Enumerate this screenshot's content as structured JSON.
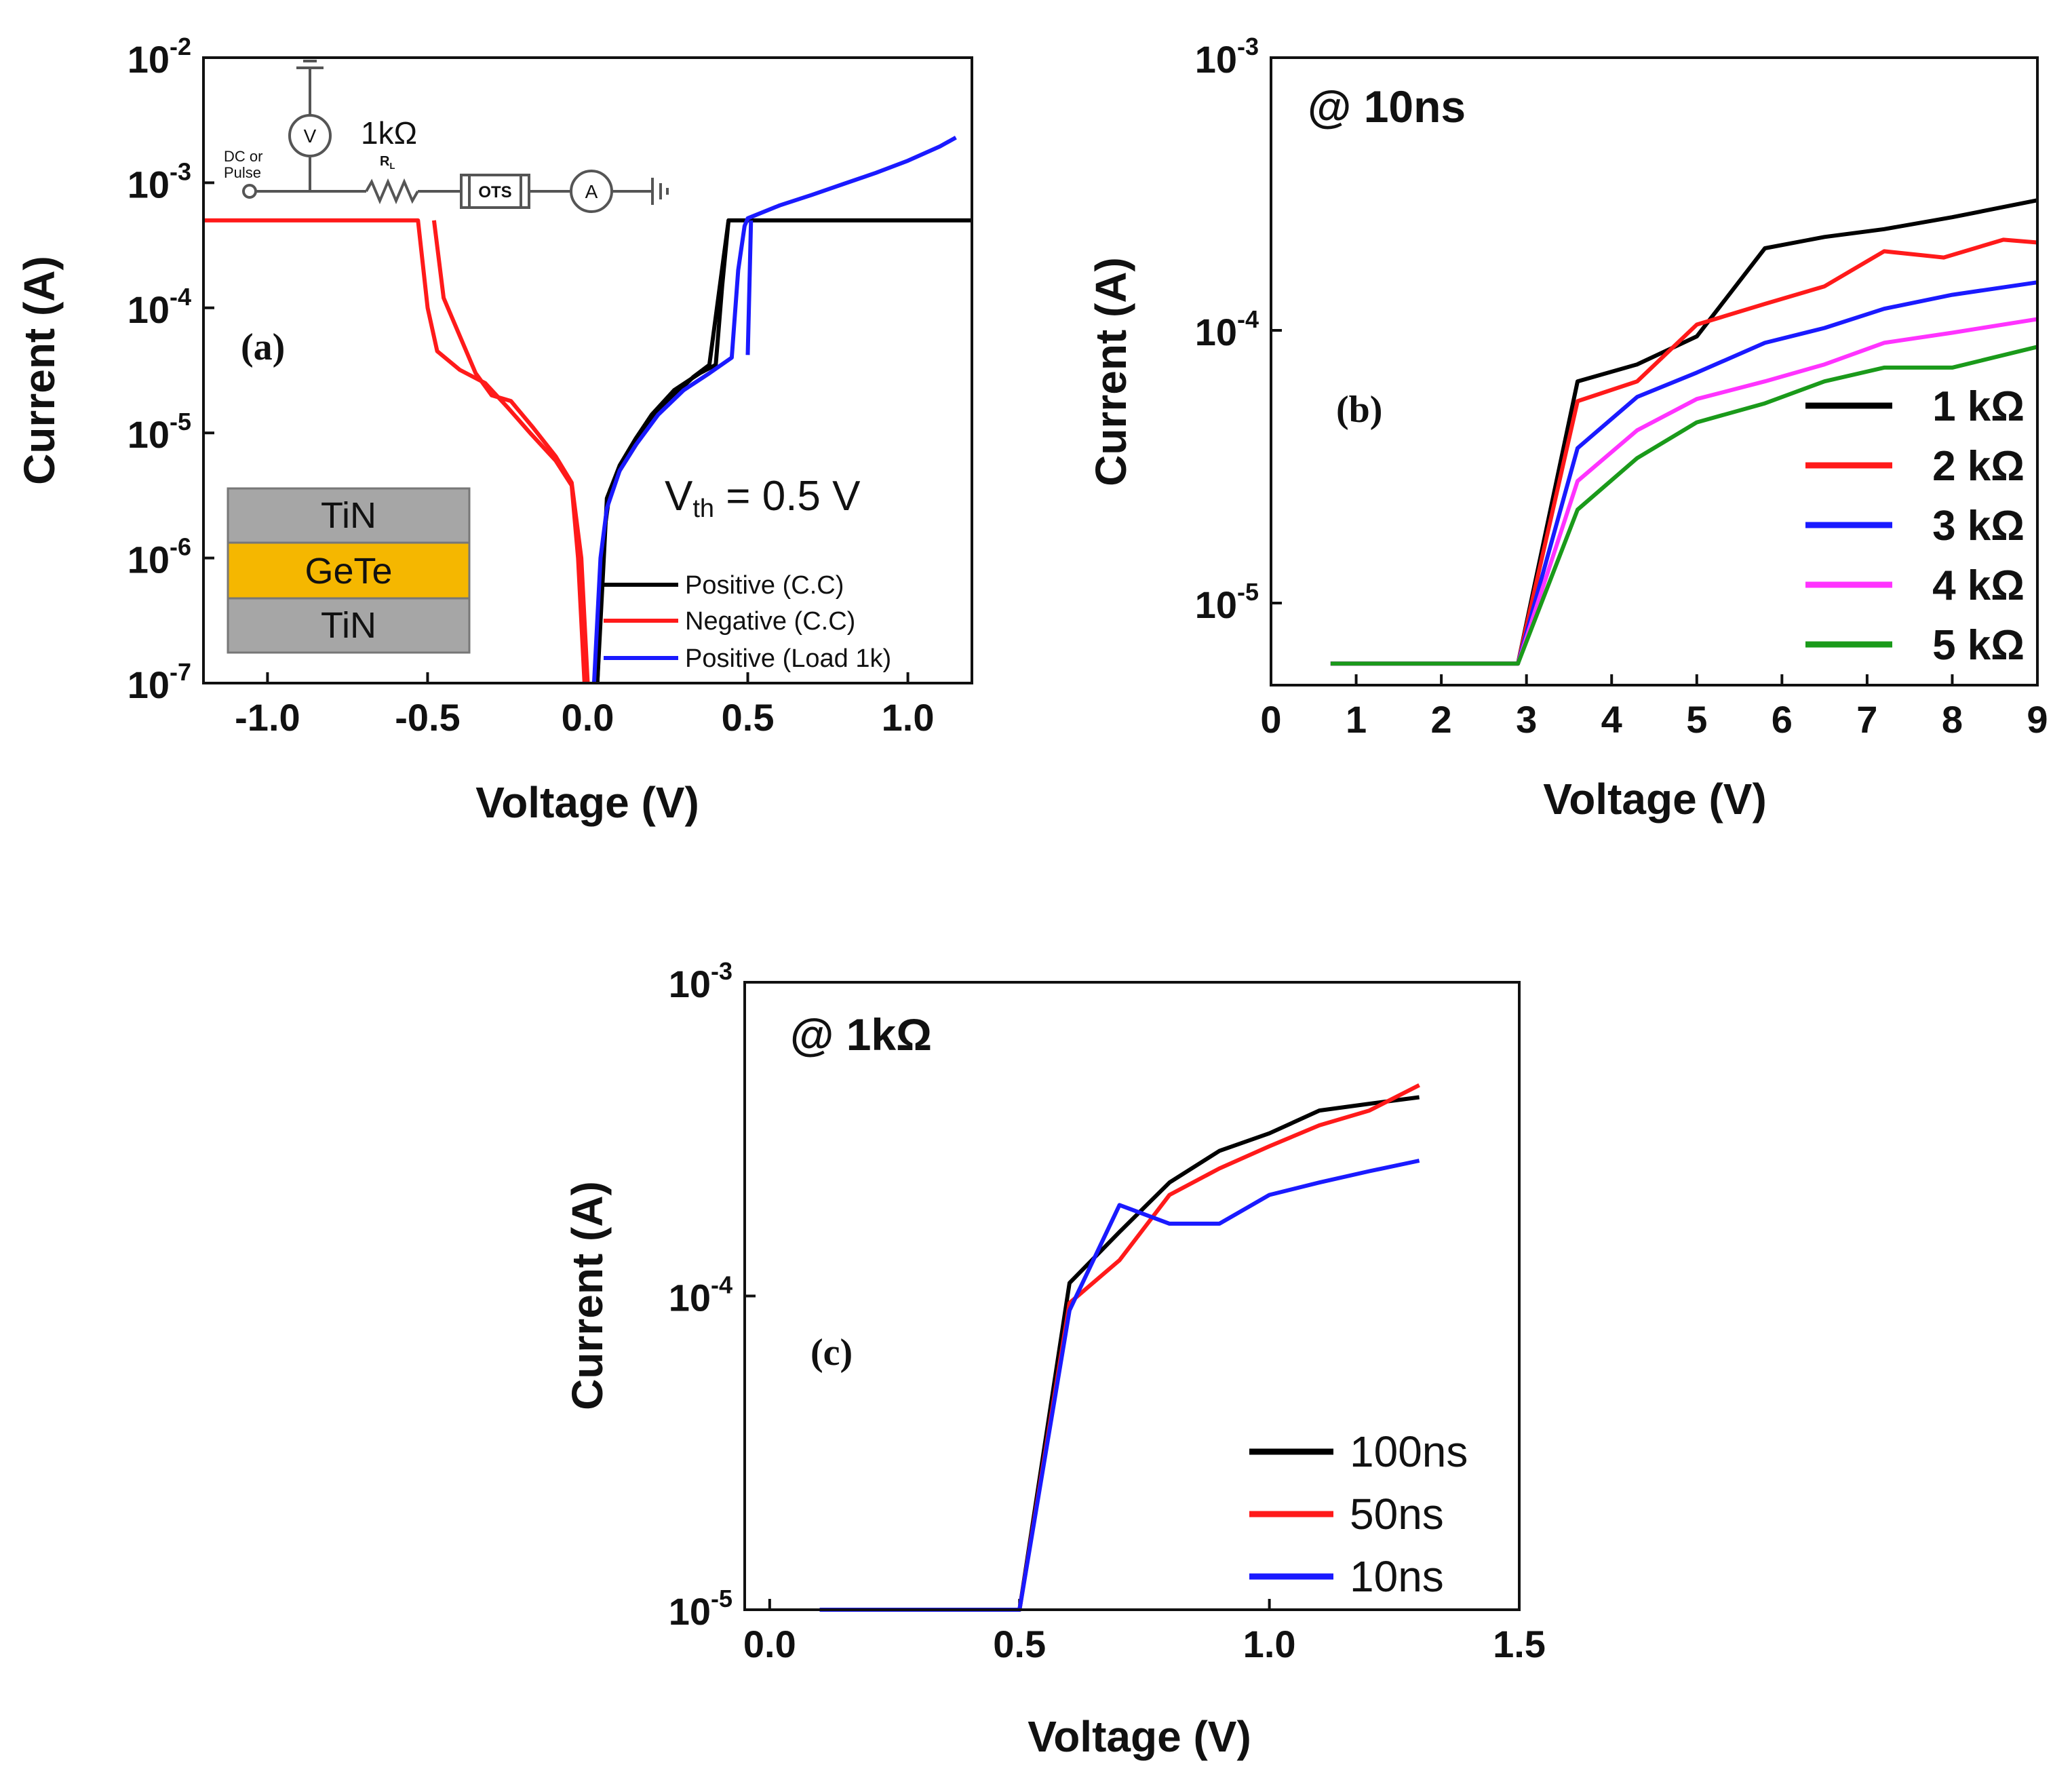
{
  "chart_data": [
    {
      "id": "a",
      "type": "line",
      "panel_label": "(a)",
      "xlabel": "Voltage (V)",
      "ylabel": "Current (A)",
      "xlim": [
        -1.2,
        1.2
      ],
      "ylim": [
        1e-07,
        0.01
      ],
      "yscale": "log",
      "xticks": [
        -1.0,
        -0.5,
        0.0,
        0.5,
        1.0
      ],
      "xtick_labels": [
        "-1.0",
        "-0.5",
        "0.0",
        "0.5",
        "1.0"
      ],
      "yticks": [
        {
          "value": 1e-07,
          "base": "10",
          "exp": "-7"
        },
        {
          "value": 1e-06,
          "base": "10",
          "exp": "-6"
        },
        {
          "value": 1e-05,
          "base": "10",
          "exp": "-5"
        },
        {
          "value": 0.0001,
          "base": "10",
          "exp": "-4"
        },
        {
          "value": 0.001,
          "base": "10",
          "exp": "-3"
        },
        {
          "value": 0.01,
          "base": "10",
          "exp": "-2"
        }
      ],
      "annotation": {
        "prefix": "V",
        "sub": "th",
        "suffix": " = 0.5 V"
      },
      "stack": {
        "top": "TiN",
        "middle": "GeTe",
        "bottom": "TiN",
        "colors": {
          "tin": "#a6a6a6",
          "gete": "#f5b700",
          "text": "#ffffff"
        }
      },
      "circuit": {
        "source": [
          "DC or",
          "Pulse"
        ],
        "voltmeter": "V",
        "resistor_value": "1kΩ",
        "resistor_label": "R",
        "resistor_sub": "L",
        "device": "OTS",
        "ammeter": "A"
      },
      "legend": {
        "position": "lower-right"
      },
      "series": [
        {
          "name": "Positive (C.C)",
          "color": "#000000",
          "points": [
            [
              0.03,
              1e-07
            ],
            [
              0.05,
              1.5e-06
            ],
            [
              0.07,
              3.5e-06
            ],
            [
              0.1,
              5e-06
            ],
            [
              0.15,
              8e-06
            ],
            [
              0.2,
              1.3e-05
            ],
            [
              0.27,
              2e-05
            ],
            [
              0.33,
              2.8e-05
            ],
            [
              0.38,
              3.5e-05
            ],
            [
              0.44,
              0.0005
            ],
            [
              0.46,
              0.0005
            ],
            [
              1.2,
              0.0005
            ]
          ]
        },
        {
          "name": "Positive (C.C)",
          "color": "#000000",
          "points": [
            [
              0.03,
              1e-07
            ],
            [
              0.06,
              3e-06
            ],
            [
              0.1,
              5.5e-06
            ],
            [
              0.15,
              9e-06
            ],
            [
              0.2,
              1.4e-05
            ],
            [
              0.27,
              2.2e-05
            ],
            [
              0.35,
              3e-05
            ],
            [
              0.4,
              3.5e-05
            ],
            [
              0.42,
              0.00015
            ],
            [
              0.44,
              0.0005
            ]
          ]
        },
        {
          "name": "Negative (C.C)",
          "color": "#ff1a1a",
          "points": [
            [
              -1.2,
              0.0005
            ],
            [
              -0.53,
              0.0005
            ],
            [
              -0.5,
              0.0001
            ],
            [
              -0.47,
              4.5e-05
            ],
            [
              -0.4,
              3.2e-05
            ],
            [
              -0.32,
              2.5e-05
            ],
            [
              -0.25,
              1.6e-05
            ],
            [
              -0.18,
              1e-05
            ],
            [
              -0.1,
              6e-06
            ],
            [
              -0.05,
              3.8e-06
            ],
            [
              -0.03,
              1e-06
            ],
            [
              -0.01,
              1e-07
            ]
          ]
        },
        {
          "name": "Negative (C.C)",
          "color": "#ff1a1a",
          "points": [
            [
              -0.48,
              0.0005
            ],
            [
              -0.45,
              0.00012
            ],
            [
              -0.4,
              6e-05
            ],
            [
              -0.35,
              3e-05
            ],
            [
              -0.3,
              2e-05
            ],
            [
              -0.24,
              1.8e-05
            ],
            [
              -0.17,
              1.1e-05
            ],
            [
              -0.1,
              6.5e-06
            ],
            [
              -0.05,
              4e-06
            ],
            [
              -0.02,
              1e-06
            ],
            [
              0.0,
              1e-07
            ]
          ]
        },
        {
          "name": "Positive (Load 1k)",
          "color": "#1a1aff",
          "points": [
            [
              0.02,
              1e-07
            ],
            [
              0.04,
              1e-06
            ],
            [
              0.06,
              2.5e-06
            ],
            [
              0.1,
              5e-06
            ],
            [
              0.15,
              8e-06
            ],
            [
              0.22,
              1.4e-05
            ],
            [
              0.3,
              2.2e-05
            ],
            [
              0.38,
              3e-05
            ],
            [
              0.45,
              4e-05
            ],
            [
              0.47,
              0.0002
            ],
            [
              0.49,
              0.00045
            ],
            [
              0.5,
              0.00052
            ],
            [
              0.6,
              0.00066
            ],
            [
              0.7,
              0.0008
            ],
            [
              0.8,
              0.00098
            ],
            [
              0.9,
              0.0012
            ],
            [
              1.0,
              0.0015
            ],
            [
              1.1,
              0.00195
            ],
            [
              1.15,
              0.0023
            ]
          ]
        },
        {
          "name": "Positive (Load 1k)",
          "color": "#1a1aff",
          "points": [
            [
              0.5,
              4.2e-05
            ],
            [
              0.51,
              0.0005
            ]
          ]
        }
      ],
      "legend_entries": [
        {
          "name": "Positive (C.C)",
          "color": "#000000"
        },
        {
          "name": "Negative (C.C)",
          "color": "#ff1a1a"
        },
        {
          "name": "Positive (Load 1k)",
          "color": "#1a1aff"
        }
      ]
    },
    {
      "id": "b",
      "type": "line",
      "panel_label": "(b)",
      "title": "@ 10ns",
      "xlabel": "Voltage (V)",
      "ylabel": "Current (A)",
      "xlim": [
        0,
        9
      ],
      "ylim": [
        5e-06,
        0.001
      ],
      "yscale": "log",
      "xticks": [
        0,
        1,
        2,
        3,
        4,
        5,
        6,
        7,
        8,
        9
      ],
      "xtick_labels": [
        "0",
        "1",
        "2",
        "3",
        "4",
        "5",
        "6",
        "7",
        "8",
        "9"
      ],
      "yticks": [
        {
          "value": 1e-05,
          "base": "10",
          "exp": "-5"
        },
        {
          "value": 0.0001,
          "base": "10",
          "exp": "-4"
        },
        {
          "value": 0.001,
          "base": "10",
          "exp": "-3"
        }
      ],
      "legend": {
        "position": "lower-right"
      },
      "series": [
        {
          "name": "1 kΩ",
          "color": "#000000",
          "points": [
            [
              0.7,
              6e-06
            ],
            [
              2.9,
              6e-06
            ],
            [
              3.6,
              6.5e-05
            ],
            [
              4.3,
              7.5e-05
            ],
            [
              5.0,
              9.5e-05
            ],
            [
              5.8,
              0.0002
            ],
            [
              6.5,
              0.00022
            ],
            [
              7.2,
              0.000235
            ],
            [
              8.0,
              0.00026
            ],
            [
              9.0,
              0.0003
            ]
          ]
        },
        {
          "name": "2 kΩ",
          "color": "#ff1a1a",
          "points": [
            [
              0.7,
              6e-06
            ],
            [
              2.9,
              6e-06
            ],
            [
              3.6,
              5.5e-05
            ],
            [
              4.3,
              6.5e-05
            ],
            [
              5.0,
              0.000105
            ],
            [
              5.8,
              0.000125
            ],
            [
              6.5,
              0.000145
            ],
            [
              7.2,
              0.000195
            ],
            [
              7.9,
              0.000185
            ],
            [
              8.6,
              0.000215
            ],
            [
              9.0,
              0.00021
            ]
          ]
        },
        {
          "name": "3 kΩ",
          "color": "#1a1aff",
          "points": [
            [
              0.7,
              6e-06
            ],
            [
              2.9,
              6e-06
            ],
            [
              3.6,
              3.7e-05
            ],
            [
              4.3,
              5.7e-05
            ],
            [
              5.0,
              7e-05
            ],
            [
              5.8,
              9e-05
            ],
            [
              6.5,
              0.000102
            ],
            [
              7.2,
              0.00012
            ],
            [
              8.0,
              0.000135
            ],
            [
              9.0,
              0.00015
            ]
          ]
        },
        {
          "name": "4 kΩ",
          "color": "#ff33ff",
          "points": [
            [
              0.7,
              6e-06
            ],
            [
              2.9,
              6e-06
            ],
            [
              3.6,
              2.8e-05
            ],
            [
              4.3,
              4.3e-05
            ],
            [
              5.0,
              5.6e-05
            ],
            [
              5.8,
              6.5e-05
            ],
            [
              6.5,
              7.5e-05
            ],
            [
              7.2,
              9e-05
            ],
            [
              8.0,
              9.8e-05
            ],
            [
              9.0,
              0.00011
            ]
          ]
        },
        {
          "name": "5 kΩ",
          "color": "#1a9a1a",
          "points": [
            [
              0.7,
              6e-06
            ],
            [
              2.9,
              6e-06
            ],
            [
              3.6,
              2.2e-05
            ],
            [
              4.3,
              3.4e-05
            ],
            [
              5.0,
              4.6e-05
            ],
            [
              5.8,
              5.4e-05
            ],
            [
              6.5,
              6.5e-05
            ],
            [
              7.2,
              7.3e-05
            ],
            [
              8.0,
              7.3e-05
            ],
            [
              9.0,
              8.7e-05
            ]
          ]
        }
      ]
    },
    {
      "id": "c",
      "type": "line",
      "panel_label": "(c)",
      "title": "@ 1kΩ",
      "xlabel": "Voltage (V)",
      "ylabel": "Current (A)",
      "xlim": [
        -0.05,
        1.5
      ],
      "ylim": [
        1e-05,
        0.001
      ],
      "yscale": "log",
      "xticks": [
        0.0,
        0.5,
        1.0,
        1.5
      ],
      "xtick_labels": [
        "0.0",
        "0.5",
        "1.0",
        "1.5"
      ],
      "yticks": [
        {
          "value": 1e-05,
          "base": "10",
          "exp": "-5"
        },
        {
          "value": 0.0001,
          "base": "10",
          "exp": "-4"
        },
        {
          "value": 0.001,
          "base": "10",
          "exp": "-3"
        }
      ],
      "legend": {
        "position": "lower-right"
      },
      "series": [
        {
          "name": "100ns",
          "color": "#000000",
          "points": [
            [
              0.1,
              1e-05
            ],
            [
              0.5,
              1e-05
            ],
            [
              0.6,
              0.00011
            ],
            [
              0.7,
              0.00016
            ],
            [
              0.8,
              0.00023
            ],
            [
              0.9,
              0.00029
            ],
            [
              1.0,
              0.00033
            ],
            [
              1.1,
              0.00039
            ],
            [
              1.2,
              0.00041
            ],
            [
              1.3,
              0.00043
            ]
          ]
        },
        {
          "name": "50ns",
          "color": "#ff1a1a",
          "points": [
            [
              0.1,
              1e-05
            ],
            [
              0.5,
              1e-05
            ],
            [
              0.6,
              9.5e-05
            ],
            [
              0.7,
              0.00013
            ],
            [
              0.8,
              0.00021
            ],
            [
              0.9,
              0.000255
            ],
            [
              1.0,
              0.0003
            ],
            [
              1.1,
              0.00035
            ],
            [
              1.2,
              0.00039
            ],
            [
              1.3,
              0.00047
            ]
          ]
        },
        {
          "name": "10ns",
          "color": "#1a1aff",
          "points": [
            [
              0.1,
              1e-05
            ],
            [
              0.5,
              1e-05
            ],
            [
              0.6,
              9e-05
            ],
            [
              0.7,
              0.000195
            ],
            [
              0.8,
              0.00017
            ],
            [
              0.9,
              0.00017
            ],
            [
              1.0,
              0.00021
            ],
            [
              1.1,
              0.00023
            ],
            [
              1.2,
              0.00025
            ],
            [
              1.3,
              0.00027
            ]
          ]
        }
      ]
    }
  ]
}
